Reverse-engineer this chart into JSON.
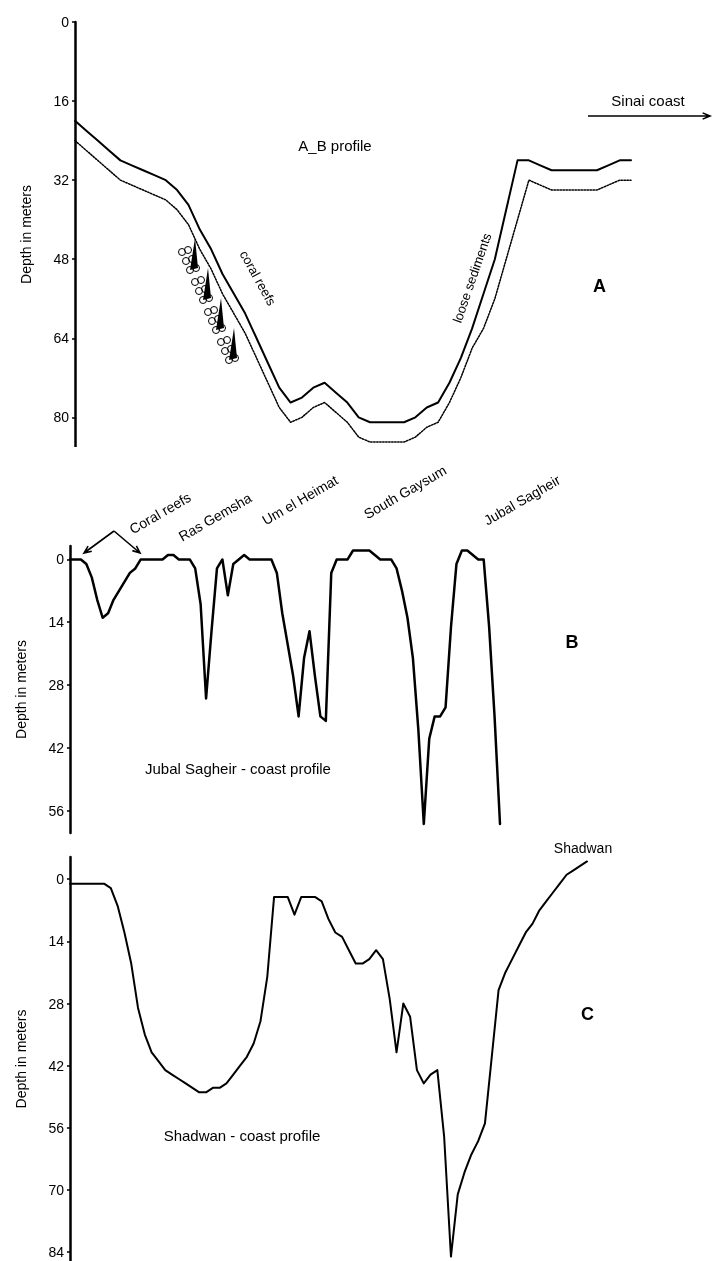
{
  "chart_data": [
    {
      "type": "line",
      "title": "A",
      "ylabel": "Depth in meters",
      "annotations": [
        "A_B profile",
        "Sinai coast",
        "coral reefs",
        "loose sediments"
      ],
      "categories": [
        null,
        null,
        null,
        null,
        null,
        null,
        null,
        null,
        null,
        null,
        null,
        null,
        null,
        null,
        null,
        null,
        null,
        null,
        null,
        null,
        null,
        null,
        null,
        null,
        null,
        null,
        null,
        null,
        null,
        null,
        null,
        null,
        null,
        null,
        null,
        null,
        null,
        null,
        null,
        null,
        null,
        null,
        null,
        null,
        null,
        null,
        null,
        null,
        null,
        null
      ],
      "series": [
        {
          "color": "#000000",
          "line_style": "solid",
          "values": [
            20,
            22,
            24,
            26,
            28,
            29,
            30,
            31,
            32,
            34,
            37,
            42,
            46,
            51,
            55,
            59,
            64,
            69,
            74,
            77,
            76,
            74,
            73,
            75,
            77,
            80,
            81,
            81,
            81,
            81,
            80,
            78,
            77,
            73,
            68,
            62,
            55,
            48,
            38,
            28,
            28,
            29,
            30,
            30,
            30,
            30,
            30,
            29,
            28,
            28
          ]
        },
        {
          "color": "#000000",
          "line_style": "dotted",
          "values": [
            24,
            26,
            28,
            30,
            32,
            33,
            34,
            35,
            36,
            38,
            41,
            46,
            50,
            55,
            59,
            63,
            68,
            73,
            78,
            81,
            80,
            78,
            77,
            79,
            81,
            84,
            85,
            85,
            85,
            85,
            84,
            82,
            81,
            77,
            72,
            66,
            62,
            56,
            48,
            40,
            32,
            33,
            34,
            34,
            34,
            34,
            34,
            33,
            32,
            32
          ]
        }
      ],
      "ylim": [
        86,
        0
      ],
      "yticks": [
        0,
        16,
        32,
        48,
        64,
        80
      ],
      "tick_labels": "y"
    },
    {
      "type": "line",
      "ylabel": "Depth in meters",
      "annotations": [
        "B",
        "Coral reefs",
        "Ras Gemsha",
        "Um el Heimat",
        "South Gaysum",
        "Jubal Sagheir",
        "Jubal Sagheir - coast profile"
      ],
      "categories": [
        null,
        null,
        null,
        null,
        null,
        null,
        null,
        null,
        null,
        null,
        null,
        null,
        null,
        null,
        null,
        null,
        null,
        null,
        null,
        null,
        null,
        null,
        null,
        null,
        null,
        null,
        null,
        null,
        null,
        null,
        null,
        null,
        null,
        null,
        null,
        null,
        null,
        null,
        null,
        null,
        null,
        null,
        null,
        null,
        null,
        null,
        null,
        null,
        null,
        null,
        null,
        null,
        null,
        null,
        null,
        null,
        null,
        null,
        null,
        null,
        null,
        null,
        null,
        null,
        null,
        null,
        null,
        null,
        null,
        null,
        null,
        null,
        null,
        null,
        null,
        null,
        null,
        null,
        null,
        null
      ],
      "series": [
        {
          "color": "#000000",
          "line_style": "solid",
          "values": [
            0,
            0,
            0,
            1,
            4,
            9,
            13,
            12,
            9,
            7,
            5,
            3,
            2,
            0,
            0,
            0,
            0,
            0,
            -1,
            -1,
            0,
            0,
            0,
            2,
            10,
            31,
            16,
            2,
            0,
            8,
            1,
            0,
            -1,
            0,
            0,
            0,
            0,
            0,
            3,
            12,
            19,
            26,
            35,
            22,
            16,
            26,
            35,
            36,
            3,
            0,
            0,
            0,
            -2,
            -2,
            -2,
            -2,
            -1,
            0,
            0,
            0,
            2,
            7,
            13,
            22,
            38,
            59,
            40,
            35,
            35,
            33,
            15,
            1,
            -2,
            -2,
            -1,
            0,
            0,
            15,
            35,
            59
          ]
        }
      ],
      "ylim": [
        61,
        -3
      ],
      "yticks": [
        0,
        14,
        28,
        42,
        56
      ],
      "tick_labels": "y"
    },
    {
      "type": "line",
      "title": "C",
      "ylabel": "Depth in meters",
      "annotations": [
        "Shadwan",
        "Shadwan - coast profile"
      ],
      "categories": [
        null,
        null,
        null,
        null,
        null,
        null,
        null,
        null,
        null,
        null,
        null,
        null,
        null,
        null,
        null,
        null,
        null,
        null,
        null,
        null,
        null,
        null,
        null,
        null,
        null,
        null,
        null,
        null,
        null,
        null,
        null,
        null,
        null,
        null,
        null,
        null,
        null,
        null,
        null,
        null,
        null,
        null,
        null,
        null,
        null,
        null,
        null,
        null,
        null,
        null,
        null,
        null,
        null,
        null,
        null,
        null,
        null,
        null,
        null,
        null,
        null,
        null,
        null,
        null,
        null,
        null,
        null,
        null,
        null,
        null,
        null,
        null,
        null,
        null,
        null,
        null,
        null
      ],
      "series": [
        {
          "color": "#000000",
          "line_style": "solid",
          "values": [
            1,
            1,
            1,
            1,
            1,
            1,
            2,
            6,
            12,
            19,
            29,
            35,
            39,
            41,
            43,
            44,
            45,
            46,
            47,
            48,
            48,
            47,
            47,
            46,
            44,
            42,
            40,
            37,
            32,
            22,
            4,
            4,
            4,
            8,
            4,
            4,
            4,
            5,
            9,
            12,
            13,
            16,
            19,
            19,
            18,
            16,
            18,
            27,
            39,
            28,
            31,
            43,
            46,
            44,
            43,
            58,
            85,
            71,
            66,
            62,
            59,
            55,
            40,
            25,
            21,
            18,
            15,
            12,
            10,
            7,
            5,
            3,
            1,
            -1,
            -2,
            -3,
            -4
          ]
        }
      ],
      "ylim": [
        86,
        -5
      ],
      "yticks": [
        0,
        14,
        28,
        42,
        56,
        70,
        84
      ],
      "tick_labels": "y"
    }
  ]
}
